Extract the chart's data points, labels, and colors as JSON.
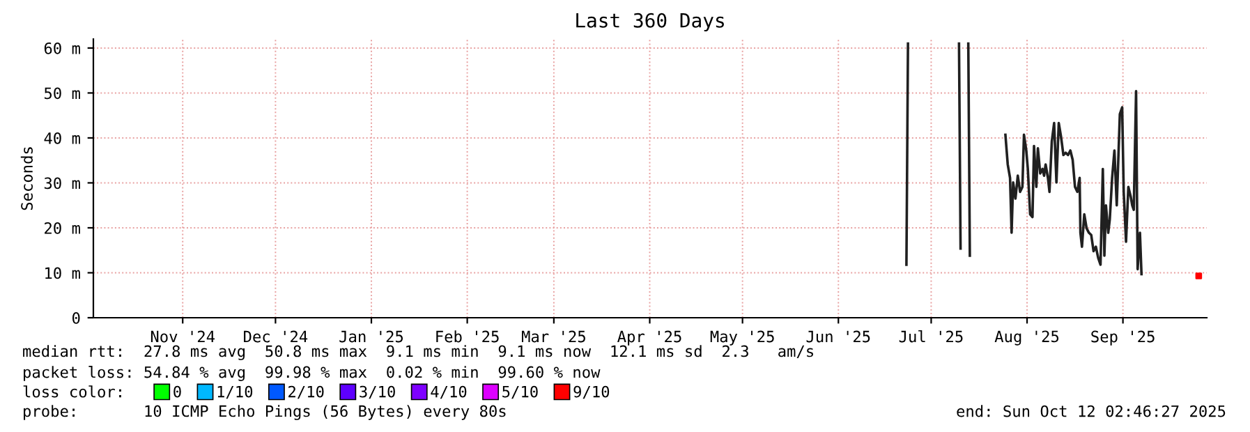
{
  "chart_data": {
    "type": "line",
    "title": "Last 360 Days",
    "ylabel": "Seconds",
    "xlim": [
      "2024-10-17T02:46",
      "2025-10-12T02:46"
    ],
    "xticks": [
      {
        "value": "2024-11-15",
        "label": "Nov '24"
      },
      {
        "value": "2024-12-15",
        "label": "Dec '24"
      },
      {
        "value": "2025-01-15",
        "label": "Jan '25"
      },
      {
        "value": "2025-02-15",
        "label": "Feb '25"
      },
      {
        "value": "2025-03-15",
        "label": "Mar '25"
      },
      {
        "value": "2025-04-15",
        "label": "Apr '25"
      },
      {
        "value": "2025-05-15",
        "label": "May '25"
      },
      {
        "value": "2025-06-15",
        "label": "Jun '25"
      },
      {
        "value": "2025-07-15",
        "label": "Jul '25"
      },
      {
        "value": "2025-08-15",
        "label": "Aug '25"
      },
      {
        "value": "2025-09-15",
        "label": "Sep '25"
      }
    ],
    "ylim": [
      0,
      62
    ],
    "yticks": [
      0,
      {
        "value": 10,
        "label": "10 m"
      },
      {
        "value": 20,
        "label": "20 m"
      },
      {
        "value": 30,
        "label": "30 m"
      },
      {
        "value": 40,
        "label": "40 m"
      },
      {
        "value": 50,
        "label": "50 m"
      },
      {
        "value": 60,
        "label": "60 m"
      }
    ],
    "grid": true,
    "legend": "bottom",
    "legend_title": "loss color:",
    "series": [
      {
        "color": "#202020",
        "x": [
          "2025-07-07T00:00",
          "2025-07-07T12:00",
          "2025-07-15T00:00",
          "2025-07-24T00:00",
          "2025-07-24T12:00",
          "2025-07-26T00:00",
          "2025-07-27T00:00",
          "2025-07-27T12:00",
          "2025-08-03T00:00",
          "2025-08-08T00:00",
          "2025-08-08T18:00",
          "2025-08-09T12:00",
          "2025-08-10T00:00",
          "2025-08-10T12:00",
          "2025-08-11T06:00",
          "2025-08-12T00:00",
          "2025-08-12T18:00",
          "2025-08-13T12:00",
          "2025-08-14T00:00",
          "2025-08-14T18:00",
          "2025-08-15T06:00",
          "2025-08-16T00:00",
          "2025-08-16T18:00",
          "2025-08-17T06:00",
          "2025-08-18T00:00",
          "2025-08-18T12:00",
          "2025-08-19T06:00",
          "2025-08-20T00:00",
          "2025-08-20T12:00",
          "2025-08-21T00:00",
          "2025-08-21T18:00",
          "2025-08-22T06:00",
          "2025-08-23T00:00",
          "2025-08-23T18:00",
          "2025-08-24T12:00",
          "2025-08-25T06:00",
          "2025-08-26T00:00",
          "2025-08-26T18:00",
          "2025-08-27T12:00",
          "2025-08-28T06:00",
          "2025-08-29T00:00",
          "2025-08-29T18:00",
          "2025-08-30T12:00",
          "2025-08-31T06:00",
          "2025-09-01T00:00",
          "2025-09-01T06:00",
          "2025-09-01T18:00",
          "2025-09-02T12:00",
          "2025-09-03T06:00",
          "2025-09-04T00:00",
          "2025-09-04T18:00",
          "2025-09-05T12:00",
          "2025-09-06T06:00",
          "2025-09-07T00:00",
          "2025-09-07T18:00",
          "2025-09-08T12:00",
          "2025-09-09T00:00",
          "2025-09-09T12:00",
          "2025-09-10T06:00",
          "2025-09-10T18:00",
          "2025-09-11T12:00",
          "2025-09-12T06:00",
          "2025-09-13T00:00",
          "2025-09-13T12:00",
          "2025-09-14T00:00",
          "2025-09-14T18:00",
          "2025-09-15T06:00",
          "2025-09-16T00:00",
          "2025-09-16T18:00",
          "2025-09-17T12:00",
          "2025-09-18T00:00",
          "2025-09-18T12:00",
          "2025-09-19T06:00",
          "2025-09-19T18:00",
          "2025-09-20T12:00",
          "2025-09-21T00:00"
        ],
        "values": [
          11.8,
          61,
          null,
          61,
          15.4,
          null,
          61,
          13.8,
          null,
          40.7,
          34.1,
          31.1,
          18.9,
          30.1,
          26.5,
          31.6,
          28.0,
          29.1,
          40.7,
          37.2,
          33.1,
          23.0,
          22.4,
          38.2,
          29.1,
          37.7,
          32.1,
          33.1,
          31.6,
          34.1,
          31.1,
          28.0,
          39.2,
          43.3,
          30.1,
          43.3,
          40.2,
          36.2,
          36.7,
          36.2,
          37.2,
          35.1,
          29.1,
          28.0,
          31.1,
          18.9,
          15.8,
          23.0,
          19.9,
          18.9,
          18.4,
          14.8,
          15.8,
          13.3,
          11.8,
          33.1,
          13.8,
          25.0,
          18.9,
          21.9,
          31.1,
          37.2,
          25.0,
          35.1,
          45.3,
          46.8,
          28.0,
          16.9,
          29.1,
          27.0,
          25.0,
          24.0,
          50.4,
          10.8,
          18.9,
          9.7
        ]
      },
      {
        "type": "scatter",
        "marker": "square",
        "name": "0",
        "color": "#00ff00"
      },
      {
        "type": "scatter",
        "marker": "square",
        "name": "1/10",
        "color": "#00b8ff"
      },
      {
        "type": "scatter",
        "marker": "square",
        "name": "2/10",
        "color": "#0059ff"
      },
      {
        "type": "scatter",
        "marker": "square",
        "name": "3/10",
        "color": "#5e00ff"
      },
      {
        "type": "scatter",
        "marker": "square",
        "name": "4/10",
        "color": "#7e00ff"
      },
      {
        "type": "scatter",
        "marker": "square",
        "name": "5/10",
        "color": "#dd00ff"
      },
      {
        "type": "scatter",
        "marker": "square",
        "name": "9/10",
        "color": "#ff0000",
        "x": [
          "2025-10-09T12:00"
        ],
        "values": [
          9.3
        ]
      }
    ],
    "annotations": [
      "median rtt:  27.8 ms avg  50.8 ms max  9.1 ms min  9.1 ms now  12.1 ms sd  2.3   am/s",
      "packet loss: 54.84 % avg  99.98 % max  0.02 % min  99.60 % now",
      "probe:       10 ICMP Echo Pings (56 Bytes) every 80s",
      "end: Sun Oct 12 02:46:27 2025"
    ]
  }
}
